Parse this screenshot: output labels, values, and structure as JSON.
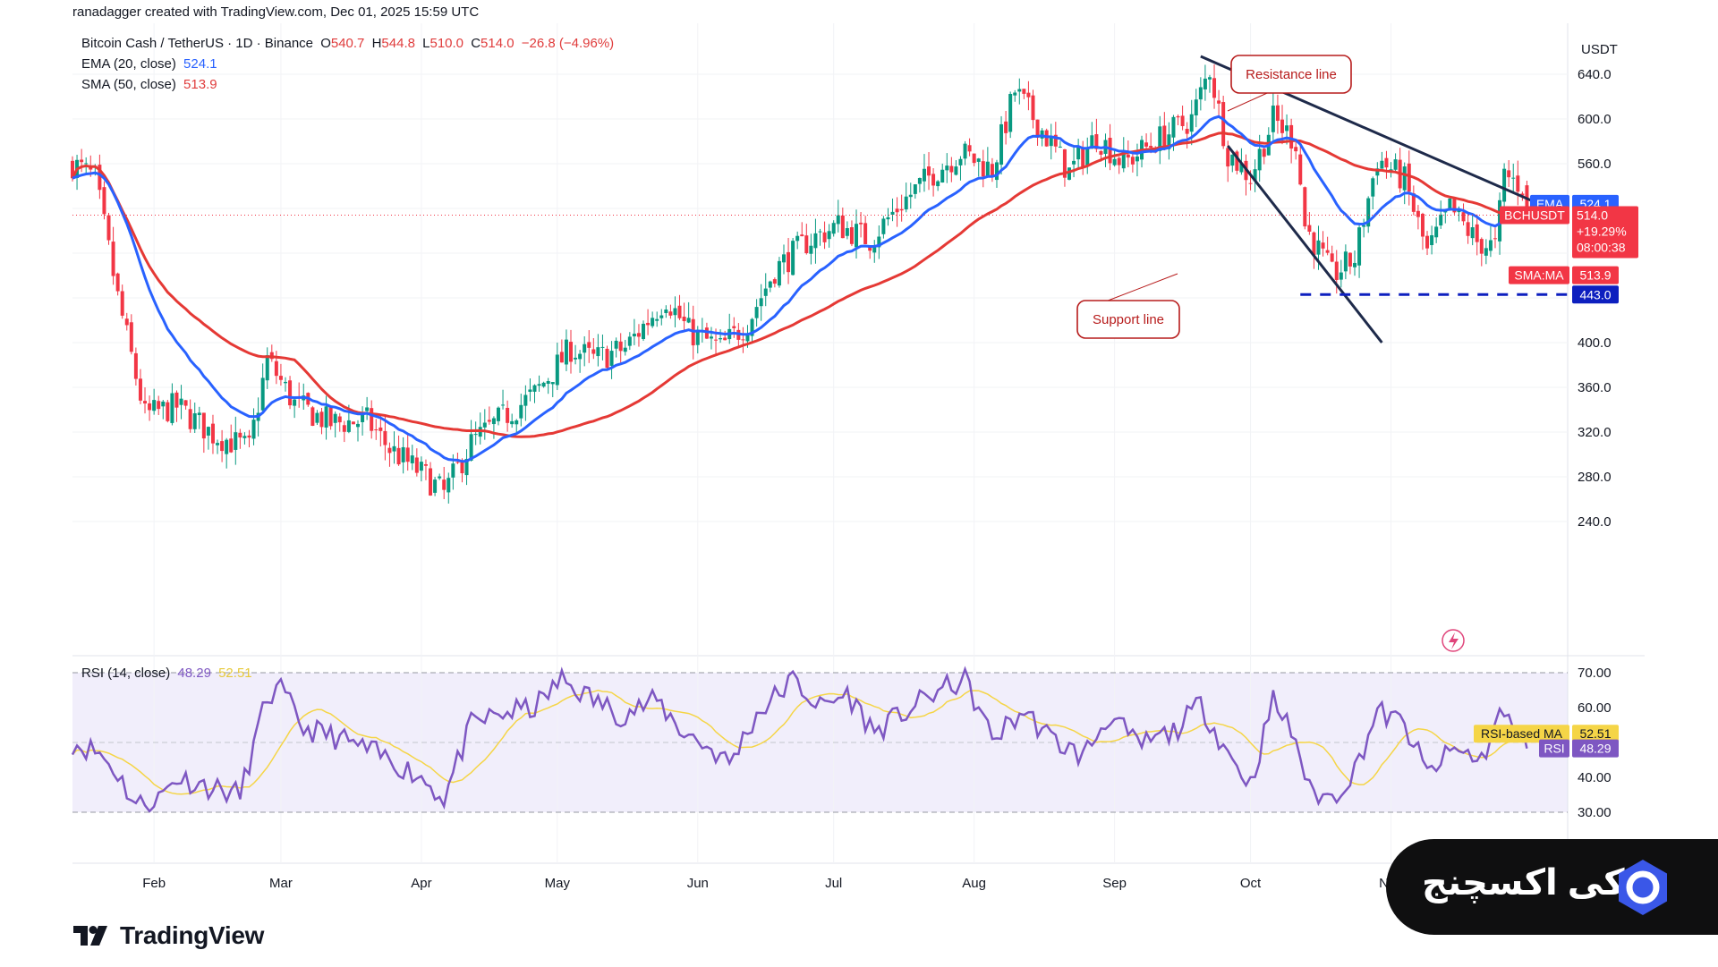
{
  "header": {
    "credit": "ranadagger created with TradingView.com, Dec 01, 2025 15:59 UTC"
  },
  "legend": {
    "symbol": "Bitcoin Cash / TetherUS · 1D · Binance",
    "o_label": "O",
    "o_value": "540.7",
    "h_label": "H",
    "h_value": "544.8",
    "l_label": "L",
    "l_value": "510.0",
    "c_label": "C",
    "c_value": "514.0",
    "change": "−26.8 (−4.96%)",
    "ema_label": "EMA (20, close)",
    "ema_value": "524.1",
    "sma_label": "SMA (50, close)",
    "sma_value": "513.9",
    "rsi_label": "RSI (14, close)",
    "rsi_value": "48.29",
    "rsi_ma_value": "52.51"
  },
  "price_axis": {
    "currency": "USDT",
    "ticks": [
      "640.0",
      "600.0",
      "560.0",
      "400.0",
      "360.0",
      "320.0",
      "280.0",
      "240.0"
    ]
  },
  "rsi_axis": {
    "ticks": [
      "70.00",
      "60.00",
      "40.00",
      "30.00"
    ]
  },
  "time_axis": {
    "labels": [
      "Feb",
      "Mar",
      "Apr",
      "May",
      "Jun",
      "Jul",
      "Aug",
      "Sep",
      "Oct",
      "Nov"
    ]
  },
  "price_labels": {
    "ema_tag": "EMA",
    "ema_value": "524.1",
    "symbol_tag": "BCHUSDT",
    "last_price": "514.0",
    "last_change": "+19.29%",
    "countdown": "08:00:38",
    "sma_tag": "SMA:MA",
    "sma_value": "513.9",
    "level_value": "443.0"
  },
  "rsi_labels": {
    "ma_tag": "RSI-based MA",
    "ma_value": "52.51",
    "rsi_tag": "RSI",
    "rsi_value": "48.29"
  },
  "annotations": {
    "resistance": "Resistance line",
    "support": "Support line"
  },
  "footer": {
    "tv_logo": "TradingView",
    "brand": "اوکی اکسچنج"
  },
  "colors": {
    "up": "#089981",
    "down": "#f23645",
    "ema": "#2962ff",
    "sma": "#e53935",
    "rsi": "#7e57c2",
    "rsi_ma": "#f5d547",
    "annotation_border": "#b71c1c",
    "trendline": "#1e2a4a",
    "level": "#0d1fbf"
  },
  "chart_data": [
    {
      "type": "candlestick",
      "title": "Bitcoin Cash / TetherUS · 1D · Binance",
      "ylabel": "USDT",
      "ylim": [
        224,
        664
      ],
      "xlim": [
        "2025-01-14",
        "2025-12-10"
      ],
      "anchors": [
        {
          "date": "2025-01-14",
          "close": 560
        },
        {
          "date": "2025-01-19",
          "close": 547
        },
        {
          "date": "2025-01-24",
          "close": 440
        },
        {
          "date": "2025-01-30",
          "close": 335
        },
        {
          "date": "2025-02-06",
          "close": 343
        },
        {
          "date": "2025-02-14",
          "close": 318
        },
        {
          "date": "2025-02-22",
          "close": 305
        },
        {
          "date": "2025-02-26",
          "close": 385
        },
        {
          "date": "2025-03-04",
          "close": 345
        },
        {
          "date": "2025-03-12",
          "close": 328
        },
        {
          "date": "2025-03-20",
          "close": 330
        },
        {
          "date": "2025-03-25",
          "close": 305
        },
        {
          "date": "2025-04-02",
          "close": 280
        },
        {
          "date": "2025-04-06",
          "close": 265
        },
        {
          "date": "2025-04-12",
          "close": 310
        },
        {
          "date": "2025-04-18",
          "close": 330
        },
        {
          "date": "2025-04-26",
          "close": 354
        },
        {
          "date": "2025-05-04",
          "close": 395
        },
        {
          "date": "2025-05-09",
          "close": 385
        },
        {
          "date": "2025-05-16",
          "close": 395
        },
        {
          "date": "2025-05-25",
          "close": 440
        },
        {
          "date": "2025-05-30",
          "close": 410
        },
        {
          "date": "2025-06-06",
          "close": 395
        },
        {
          "date": "2025-06-12",
          "close": 418
        },
        {
          "date": "2025-06-18",
          "close": 465
        },
        {
          "date": "2025-06-25",
          "close": 490
        },
        {
          "date": "2025-07-02",
          "close": 505
        },
        {
          "date": "2025-07-09",
          "close": 492
        },
        {
          "date": "2025-07-16",
          "close": 525
        },
        {
          "date": "2025-07-23",
          "close": 552
        },
        {
          "date": "2025-07-29",
          "close": 570
        },
        {
          "date": "2025-08-05",
          "close": 555
        },
        {
          "date": "2025-08-10",
          "close": 625
        },
        {
          "date": "2025-08-16",
          "close": 590
        },
        {
          "date": "2025-08-22",
          "close": 552
        },
        {
          "date": "2025-08-28",
          "close": 585
        },
        {
          "date": "2025-09-03",
          "close": 560
        },
        {
          "date": "2025-09-10",
          "close": 580
        },
        {
          "date": "2025-09-18",
          "close": 600
        },
        {
          "date": "2025-09-22",
          "close": 645
        },
        {
          "date": "2025-09-26",
          "close": 570
        },
        {
          "date": "2025-10-01",
          "close": 548
        },
        {
          "date": "2025-10-06",
          "close": 600
        },
        {
          "date": "2025-10-11",
          "close": 580
        },
        {
          "date": "2025-10-13",
          "close": 505
        },
        {
          "date": "2025-10-19",
          "close": 460
        },
        {
          "date": "2025-10-24",
          "close": 475
        },
        {
          "date": "2025-10-29",
          "close": 565
        },
        {
          "date": "2025-11-04",
          "close": 545
        },
        {
          "date": "2025-11-09",
          "close": 480
        },
        {
          "date": "2025-11-14",
          "close": 520
        },
        {
          "date": "2025-11-20",
          "close": 490
        },
        {
          "date": "2025-11-24",
          "close": 485
        },
        {
          "date": "2025-11-26",
          "close": 550
        },
        {
          "date": "2025-11-30",
          "close": 540
        },
        {
          "date": "2025-12-01",
          "close": 514
        }
      ],
      "last": {
        "open": 540.7,
        "high": 544.8,
        "low": 510.0,
        "close": 514.0
      },
      "series": [
        {
          "name": "EMA (20, close)",
          "last": 524.1
        },
        {
          "name": "SMA (50, close)",
          "last": 513.9
        }
      ],
      "annotations": {
        "resistance_line": {
          "from": {
            "date": "2025-09-20",
            "price": 656
          },
          "to": {
            "date": "2025-12-06",
            "price": 520
          }
        },
        "support_line": {
          "from": {
            "date": "2025-09-26",
            "price": 576
          },
          "to": {
            "date": "2025-10-30",
            "price": 400
          }
        },
        "horizontal_level": 443.0,
        "level_from": "2025-10-12"
      }
    },
    {
      "type": "line",
      "title": "RSI (14, close)",
      "ylim": [
        30,
        70
      ],
      "band": [
        30,
        70
      ],
      "anchors": [
        {
          "date": "2025-01-14",
          "value": 50
        },
        {
          "date": "2025-01-20",
          "value": 47
        },
        {
          "date": "2025-01-24",
          "value": 41
        },
        {
          "date": "2025-01-28",
          "value": 32
        },
        {
          "date": "2025-02-02",
          "value": 34
        },
        {
          "date": "2025-02-06",
          "value": 40
        },
        {
          "date": "2025-02-14",
          "value": 37
        },
        {
          "date": "2025-02-20",
          "value": 35
        },
        {
          "date": "2025-02-26",
          "value": 63
        },
        {
          "date": "2025-03-01",
          "value": 65
        },
        {
          "date": "2025-03-06",
          "value": 54
        },
        {
          "date": "2025-03-12",
          "value": 52
        },
        {
          "date": "2025-03-18",
          "value": 49
        },
        {
          "date": "2025-03-25",
          "value": 45
        },
        {
          "date": "2025-04-01",
          "value": 40
        },
        {
          "date": "2025-04-06",
          "value": 34
        },
        {
          "date": "2025-04-12",
          "value": 55
        },
        {
          "date": "2025-04-18",
          "value": 58
        },
        {
          "date": "2025-04-26",
          "value": 60
        },
        {
          "date": "2025-05-02",
          "value": 68
        },
        {
          "date": "2025-05-08",
          "value": 63
        },
        {
          "date": "2025-05-15",
          "value": 58
        },
        {
          "date": "2025-05-23",
          "value": 62
        },
        {
          "date": "2025-05-28",
          "value": 54
        },
        {
          "date": "2025-06-04",
          "value": 48
        },
        {
          "date": "2025-06-08",
          "value": 44
        },
        {
          "date": "2025-06-14",
          "value": 58
        },
        {
          "date": "2025-06-22",
          "value": 68
        },
        {
          "date": "2025-06-28",
          "value": 60
        },
        {
          "date": "2025-07-04",
          "value": 64
        },
        {
          "date": "2025-07-10",
          "value": 53
        },
        {
          "date": "2025-07-16",
          "value": 58
        },
        {
          "date": "2025-07-23",
          "value": 64
        },
        {
          "date": "2025-07-30",
          "value": 68
        },
        {
          "date": "2025-08-05",
          "value": 51
        },
        {
          "date": "2025-08-12",
          "value": 59
        },
        {
          "date": "2025-08-18",
          "value": 51
        },
        {
          "date": "2025-08-25",
          "value": 46
        },
        {
          "date": "2025-08-31",
          "value": 58
        },
        {
          "date": "2025-09-06",
          "value": 49
        },
        {
          "date": "2025-09-14",
          "value": 53
        },
        {
          "date": "2025-09-20",
          "value": 61
        },
        {
          "date": "2025-09-26",
          "value": 47
        },
        {
          "date": "2025-10-01",
          "value": 38
        },
        {
          "date": "2025-10-06",
          "value": 62
        },
        {
          "date": "2025-10-11",
          "value": 51
        },
        {
          "date": "2025-10-14",
          "value": 36
        },
        {
          "date": "2025-10-19",
          "value": 34
        },
        {
          "date": "2025-10-24",
          "value": 42
        },
        {
          "date": "2025-10-29",
          "value": 59
        },
        {
          "date": "2025-11-04",
          "value": 55
        },
        {
          "date": "2025-11-09",
          "value": 41
        },
        {
          "date": "2025-11-15",
          "value": 48
        },
        {
          "date": "2025-11-21",
          "value": 45
        },
        {
          "date": "2025-11-25",
          "value": 58
        },
        {
          "date": "2025-11-29",
          "value": 54
        },
        {
          "date": "2025-12-01",
          "value": 48.29
        }
      ],
      "series": [
        {
          "name": "RSI",
          "last": 48.29
        },
        {
          "name": "RSI-based MA",
          "last": 52.51
        }
      ]
    }
  ]
}
